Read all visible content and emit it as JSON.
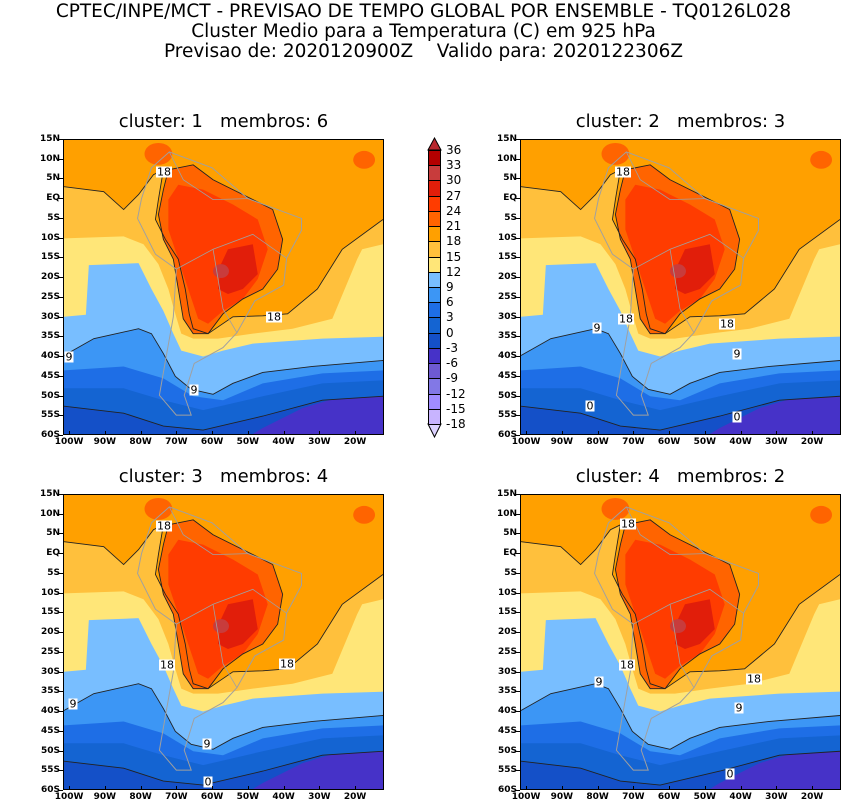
{
  "header": {
    "line1": "CPTEC/INPE/MCT - PREVISAO DE TEMPO GLOBAL POR ENSEMBLE - TQ0126L028",
    "line2": "Cluster Medio para a Temperatura (C) em 925 hPa",
    "line3": "Previsao de: 2020120900Z    Valido para: 2020122306Z"
  },
  "axes": {
    "lat_labels": [
      "15N",
      "10N",
      "5N",
      "EQ",
      "5S",
      "10S",
      "15S",
      "20S",
      "25S",
      "30S",
      "35S",
      "40S",
      "45S",
      "50S",
      "55S",
      "60S"
    ],
    "lon_labels": [
      "100W",
      "90W",
      "80W",
      "70W",
      "60W",
      "50W",
      "40W",
      "30W",
      "20W"
    ]
  },
  "panels": [
    {
      "title": "cluster: 1   membros: 6",
      "contour_labels": [
        "18",
        "18",
        "9",
        "9"
      ]
    },
    {
      "title": "cluster: 2   membros: 3",
      "contour_labels": [
        "18",
        "18",
        "18",
        "9",
        "9",
        "0",
        "0"
      ]
    },
    {
      "title": "cluster: 3   membros: 4",
      "contour_labels": [
        "18",
        "18",
        "18",
        "9",
        "9",
        "0"
      ]
    },
    {
      "title": "cluster: 4   membros: 2",
      "contour_labels": [
        "18",
        "18",
        "18",
        "9",
        "9",
        "0"
      ]
    }
  ],
  "colorbar": {
    "labels": [
      "36",
      "33",
      "30",
      "27",
      "24",
      "21",
      "18",
      "15",
      "12",
      "9",
      "6",
      "3",
      "0",
      "-3",
      "-6",
      "-9",
      "-12",
      "-15",
      "-18"
    ],
    "colors": [
      "#b40000",
      "#c83c3c",
      "#e11e0a",
      "#ff3c00",
      "#ff6400",
      "#ffa000",
      "#ffc03c",
      "#ffe678",
      "#78beff",
      "#3c96f5",
      "#1e6ee6",
      "#1464d2",
      "#1450c8",
      "#4632c8",
      "#6e5ad2",
      "#8278e6",
      "#a08cff",
      "#c8b4ff"
    ],
    "over_color": "#b8282e",
    "under_color": "#dcd2ff"
  }
}
